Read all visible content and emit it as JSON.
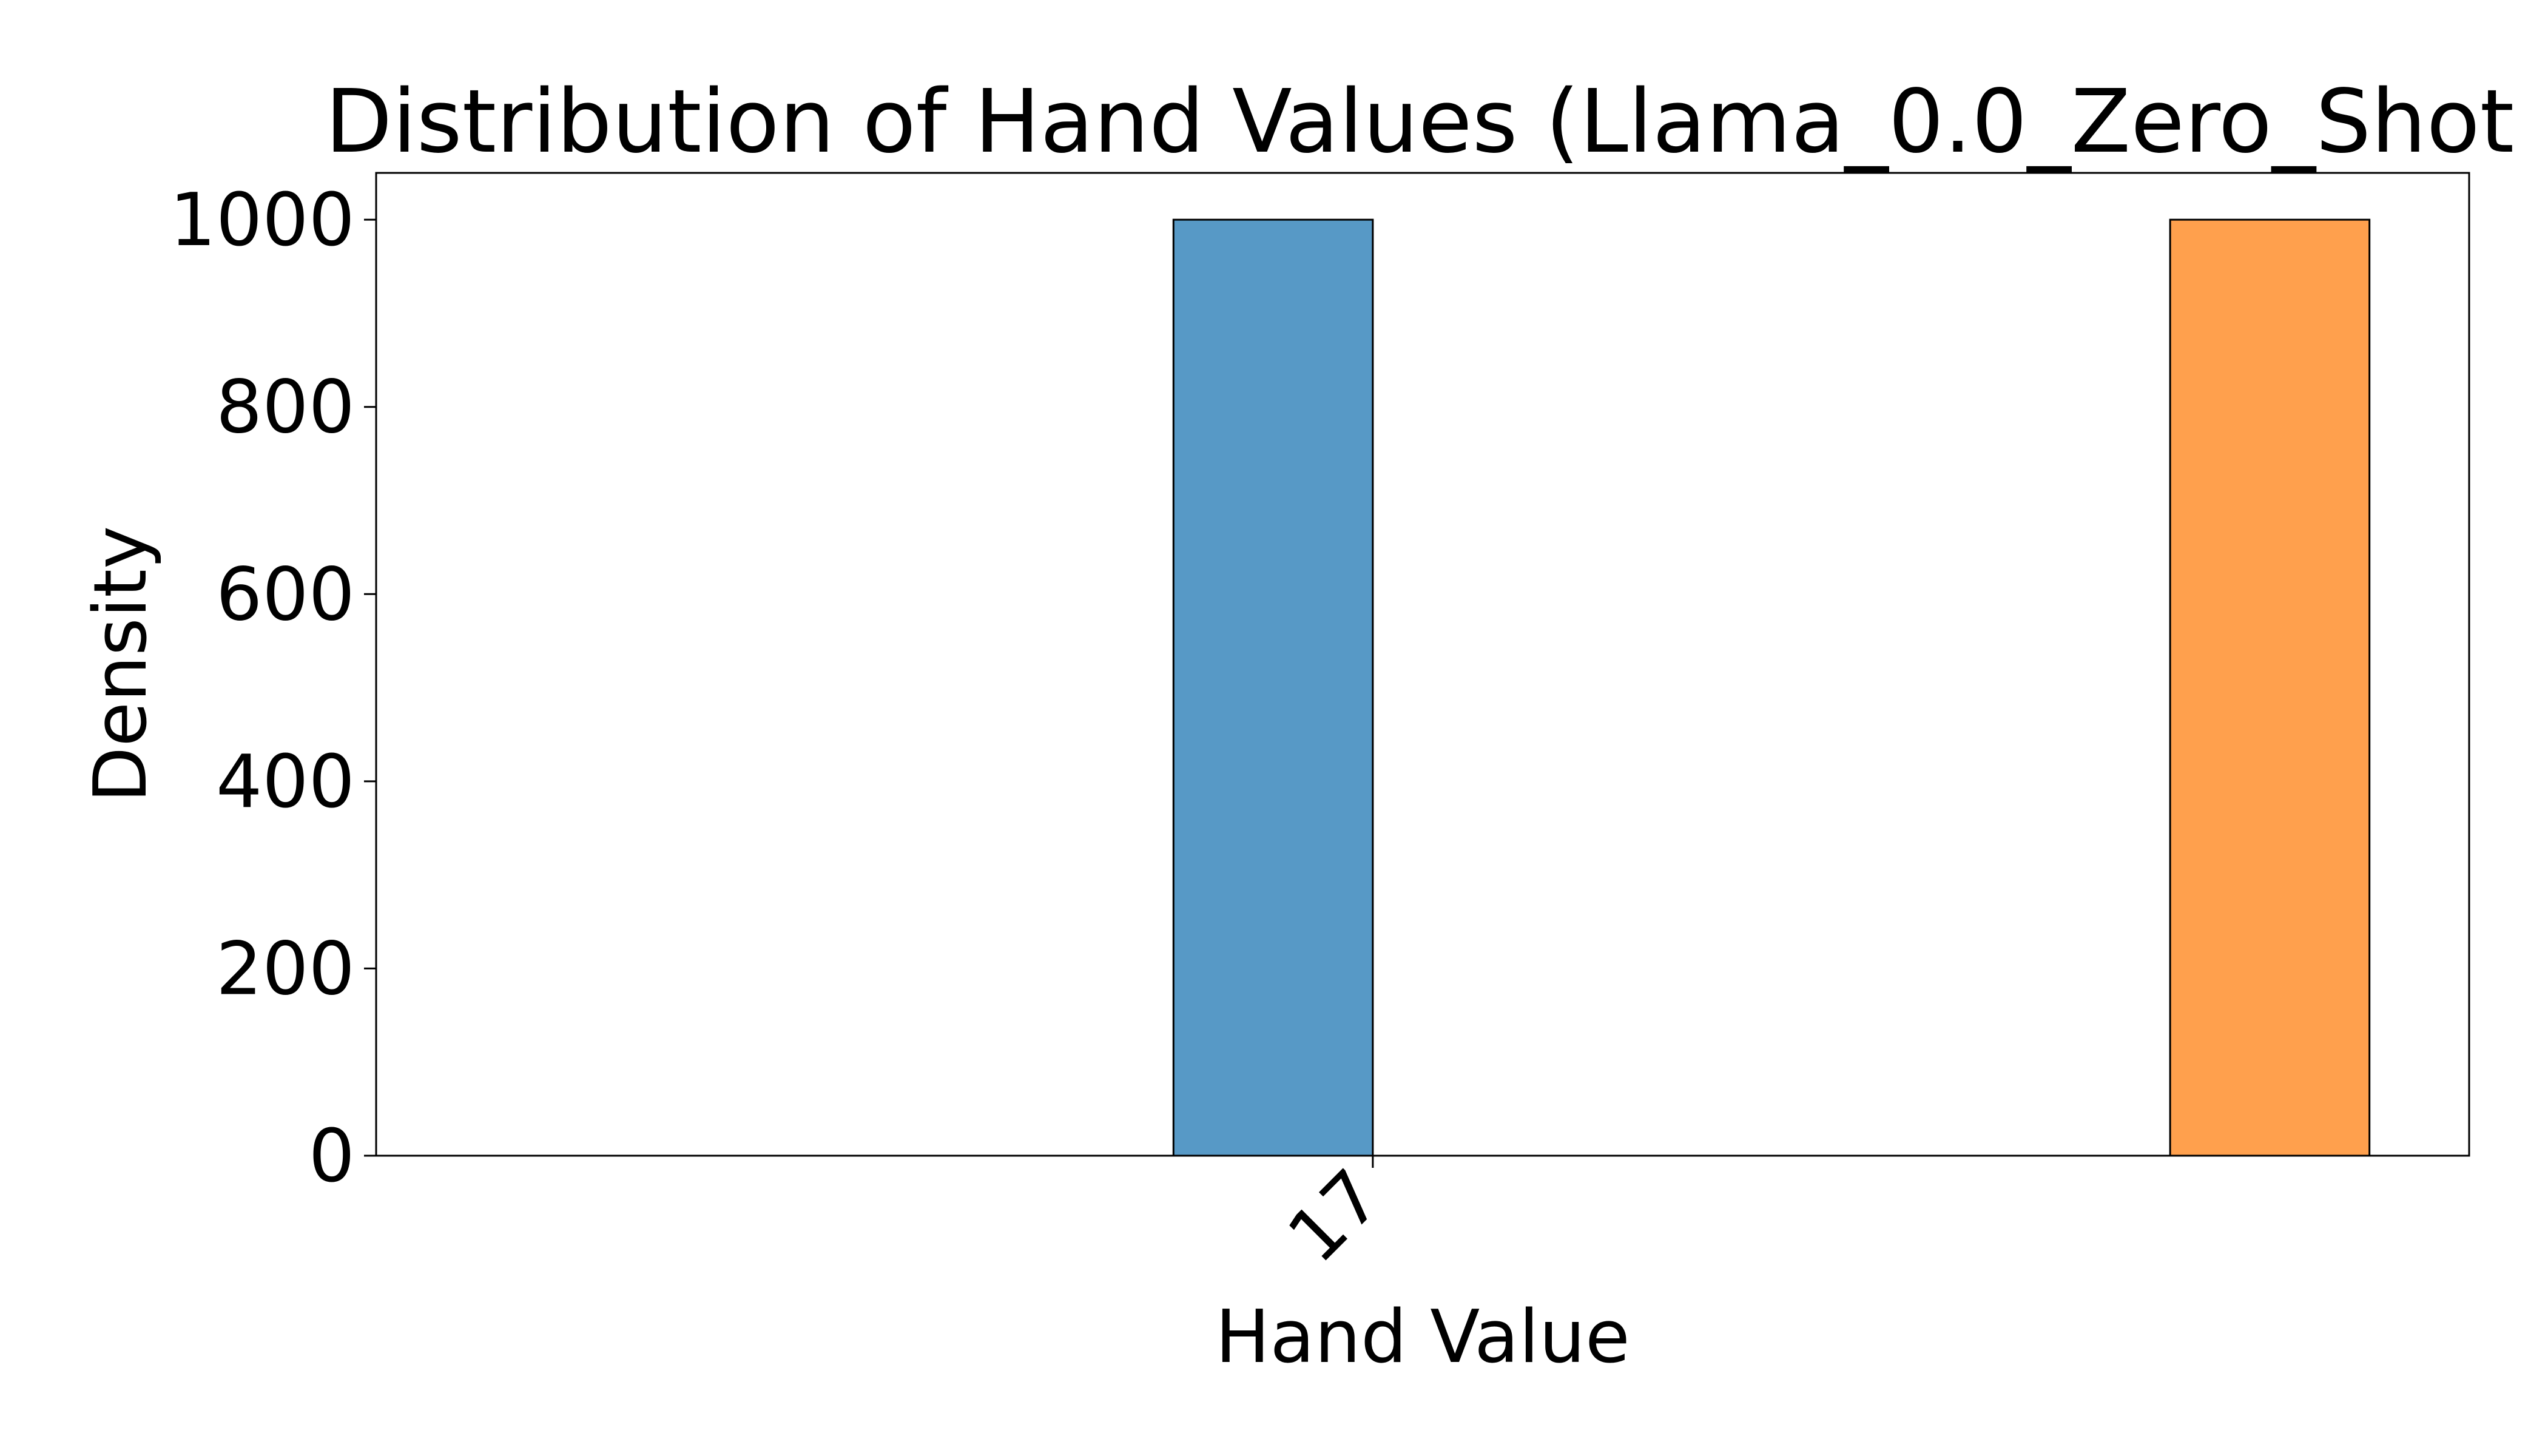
{
  "chart_data": {
    "type": "bar",
    "title": "Distribution of Hand Values (Llama_0.0_Zero_Shot",
    "xlabel": "Hand Value",
    "ylabel": "Density",
    "x_ticks": [
      {
        "label": "17",
        "value": 17.0
      }
    ],
    "y_ticks": [
      0,
      200,
      400,
      600,
      800,
      1000
    ],
    "xlim": [
      16.95,
      17.055
    ],
    "ylim": [
      0,
      1050
    ],
    "grid": false,
    "bars": [
      {
        "x_start": 16.99,
        "x_end": 17.0,
        "value": 1000,
        "color": "#5799c6"
      },
      {
        "x_start": 17.04,
        "x_end": 17.05,
        "value": 1000,
        "color": "#ffa04d"
      }
    ]
  }
}
